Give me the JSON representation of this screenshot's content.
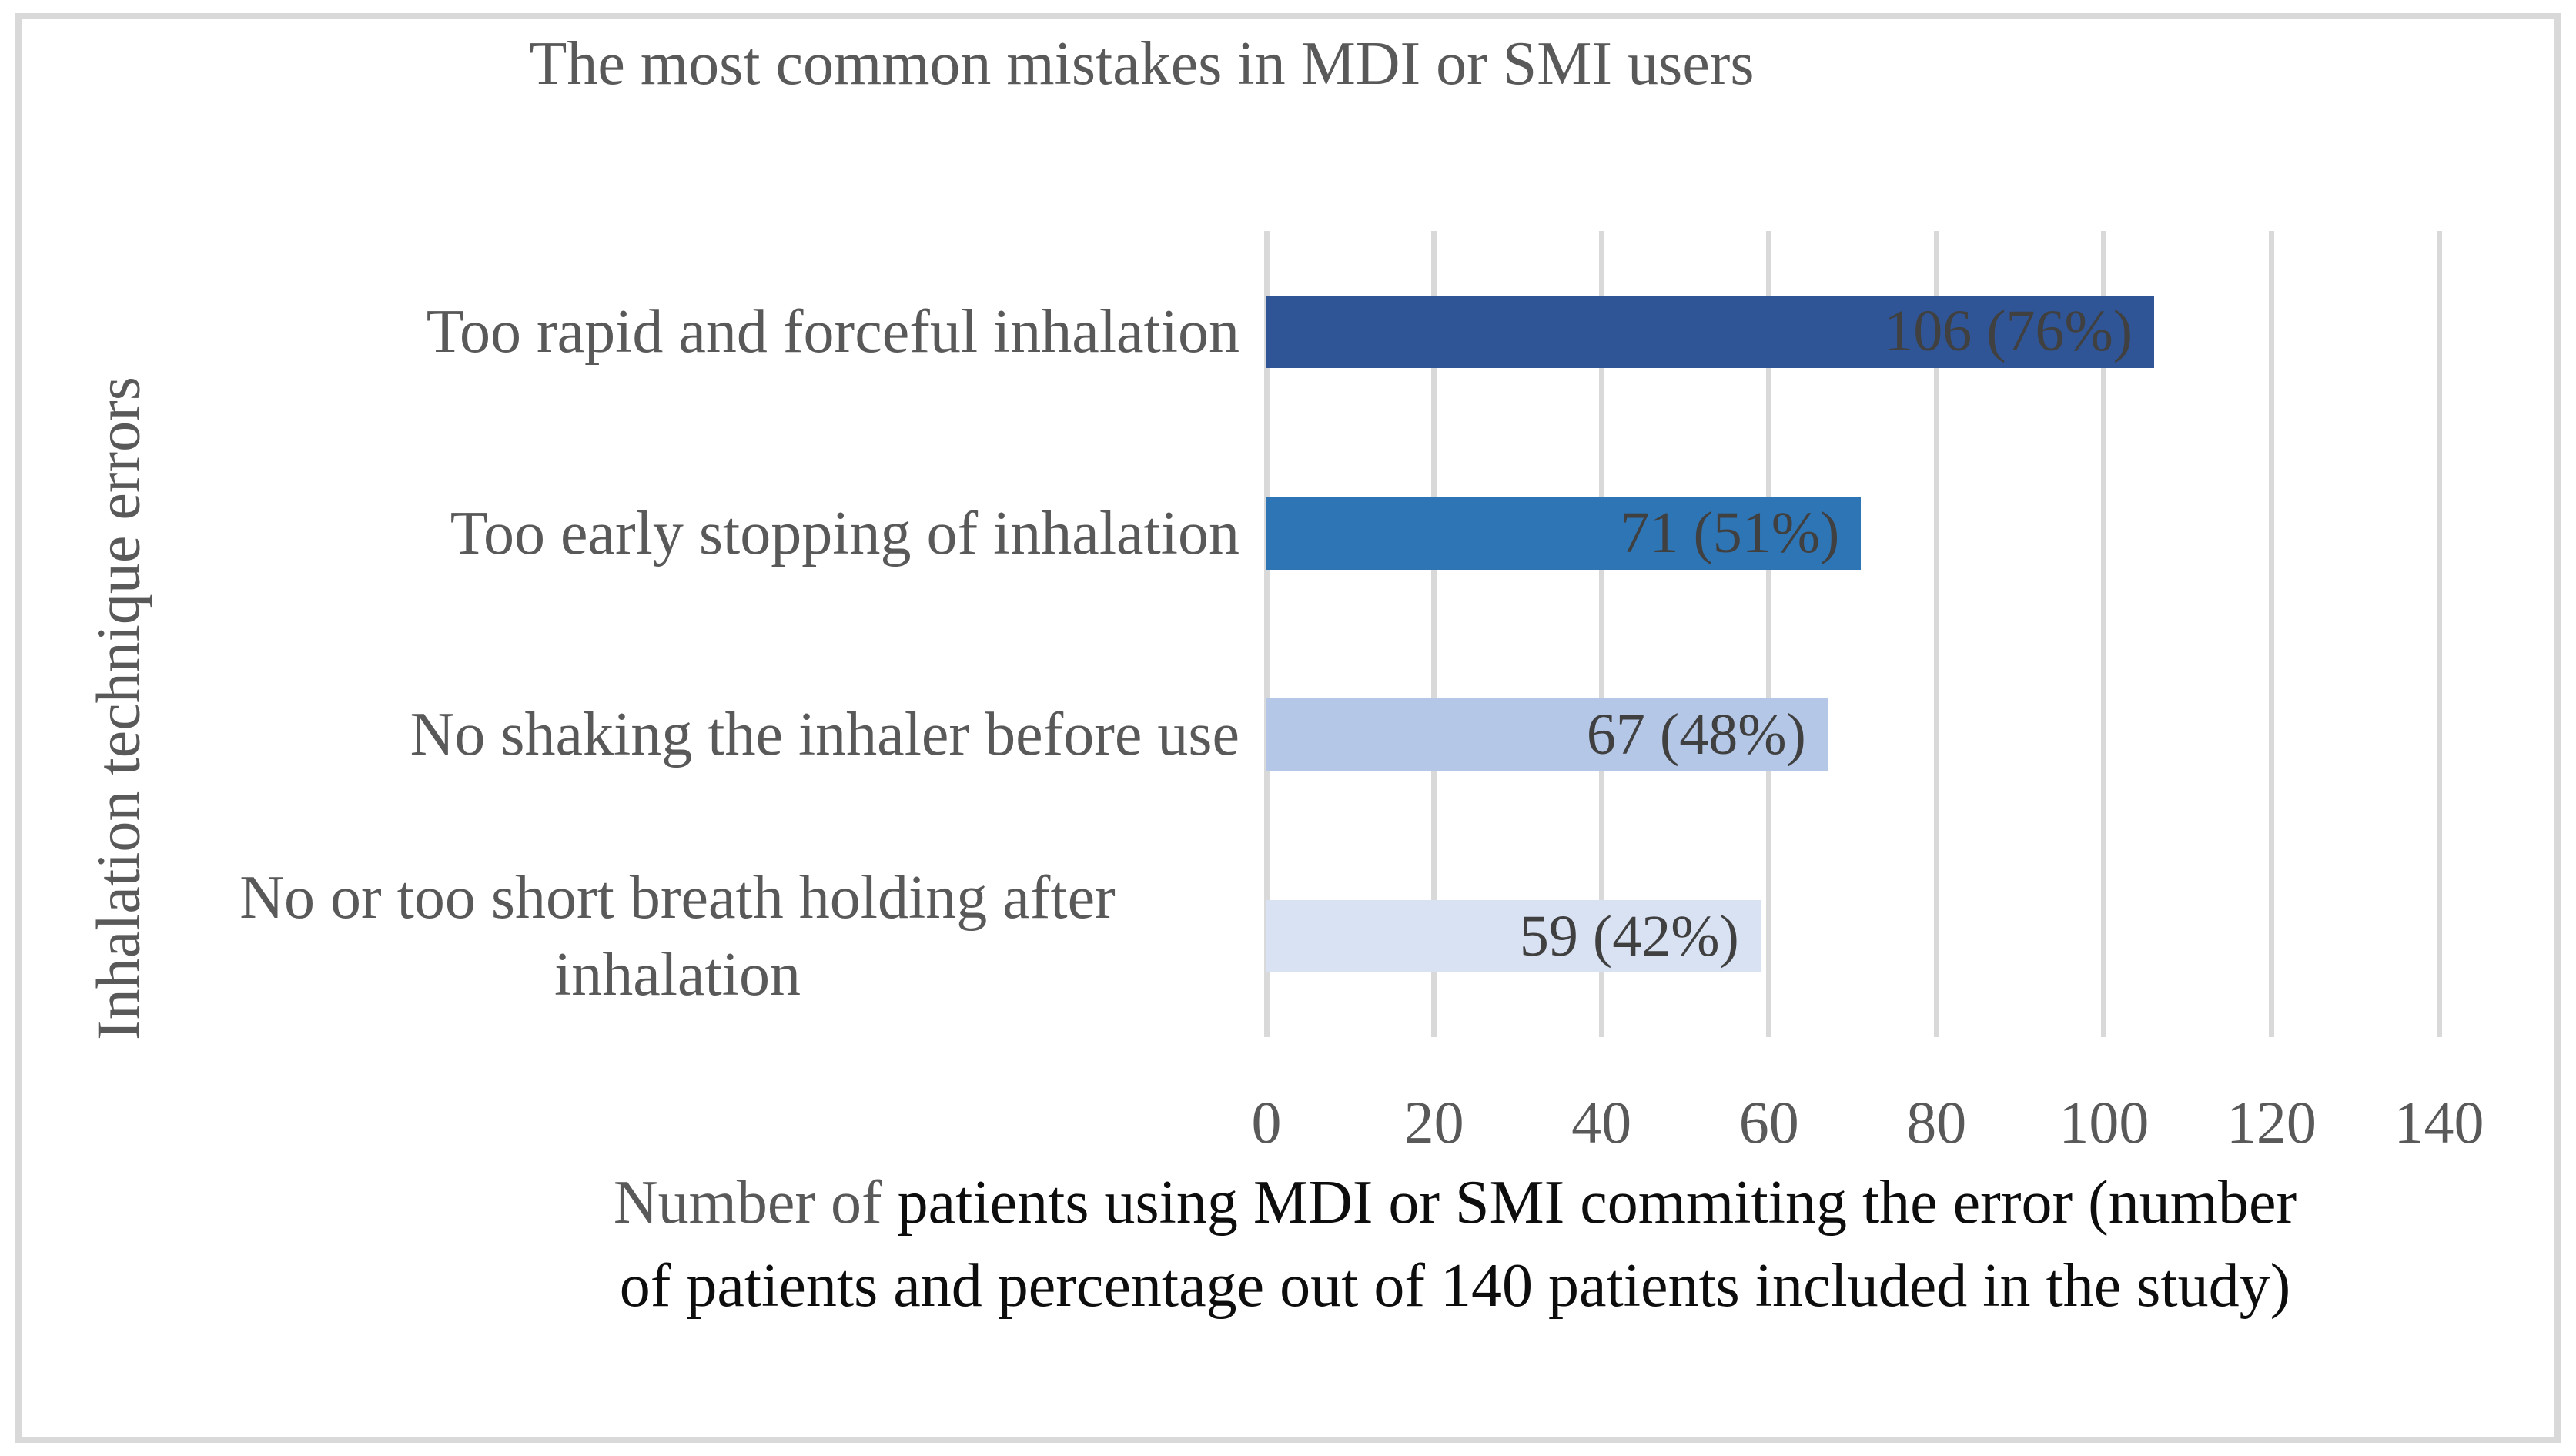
{
  "figure": {
    "title": "The most common mistakes in MDI or SMI users",
    "y_axis_title": "Inhalation technique errors",
    "x_axis_title": {
      "line1_gray": "Number of ",
      "line1_black": "patients using MDI or SMI commiting the error (number",
      "line2": "of patients and percentage out of 140 patients included in the study)"
    }
  },
  "chart_data": {
    "type": "bar",
    "orientation": "horizontal",
    "title": "The most common mistakes in MDI or SMI users",
    "xlabel": "Number of patients using MDI or SMI commiting the error (number of patients and percentage out of 140 patients included in the study)",
    "ylabel": "Inhalation technique errors",
    "categories": [
      "Too rapid and forceful inhalation",
      "Too early stopping of inhalation",
      "No shaking the inhaler before use",
      "No or too short breath holding after inhalation"
    ],
    "values": [
      106,
      71,
      67,
      59
    ],
    "percent_of_total": [
      76,
      51,
      48,
      42
    ],
    "data_labels": [
      "106 (76%)",
      "71 (51%)",
      "67 (48%)",
      "59 (42%)"
    ],
    "total_patients": 140,
    "xlim": [
      0,
      140
    ],
    "xticks": [
      0,
      20,
      40,
      60,
      80,
      100,
      120,
      140
    ],
    "bar_colors": [
      "#2F5596",
      "#2E75B6",
      "#B4C7E7",
      "#D9E2F3"
    ],
    "gridline_color": "#D9D9D9",
    "grid": "vertical-only",
    "legend": "none"
  },
  "colors": {
    "border": "#D9D9D9",
    "title_text": "#595959",
    "axis_text": "#595959",
    "value_label_text": "#404040",
    "caption_black": "#0D0D0D",
    "background": "#FFFFFF"
  }
}
